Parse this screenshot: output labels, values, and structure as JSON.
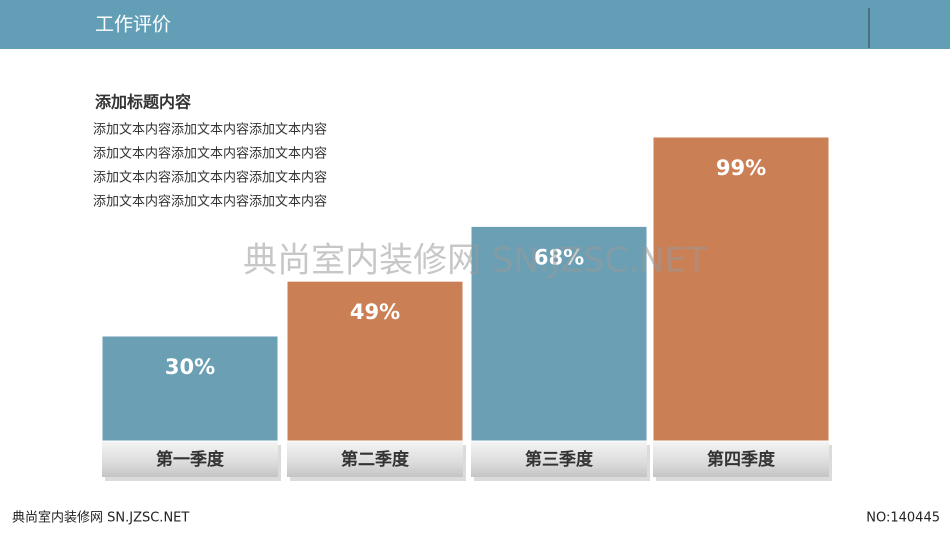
{
  "header": {
    "title": "工作评价"
  },
  "text_block": {
    "heading": "添加标题内容",
    "lines": [
      "添加文本内容添加文本内容添加文本内容",
      "添加文本内容添加文本内容添加文本内容",
      "添加文本内容添加文本内容添加文本内容",
      "添加文本内容添加文本内容添加文本内容"
    ]
  },
  "watermark": "典尚室内装修网 SN.JZSC.NET",
  "footer": {
    "left": "典尚室内装修网 SN.JZSC.NET",
    "right": "NO:140445"
  },
  "chart_data": {
    "type": "bar",
    "categories": [
      "第一季度",
      "第二季度",
      "第三季度",
      "第四季度"
    ],
    "values": [
      30,
      49,
      68,
      99
    ],
    "value_labels": [
      "30%",
      "49%",
      "68%",
      "99%"
    ],
    "colors": [
      "#6a9fb4",
      "#cb7f55",
      "#6a9fb4",
      "#cb7f55"
    ]
  }
}
